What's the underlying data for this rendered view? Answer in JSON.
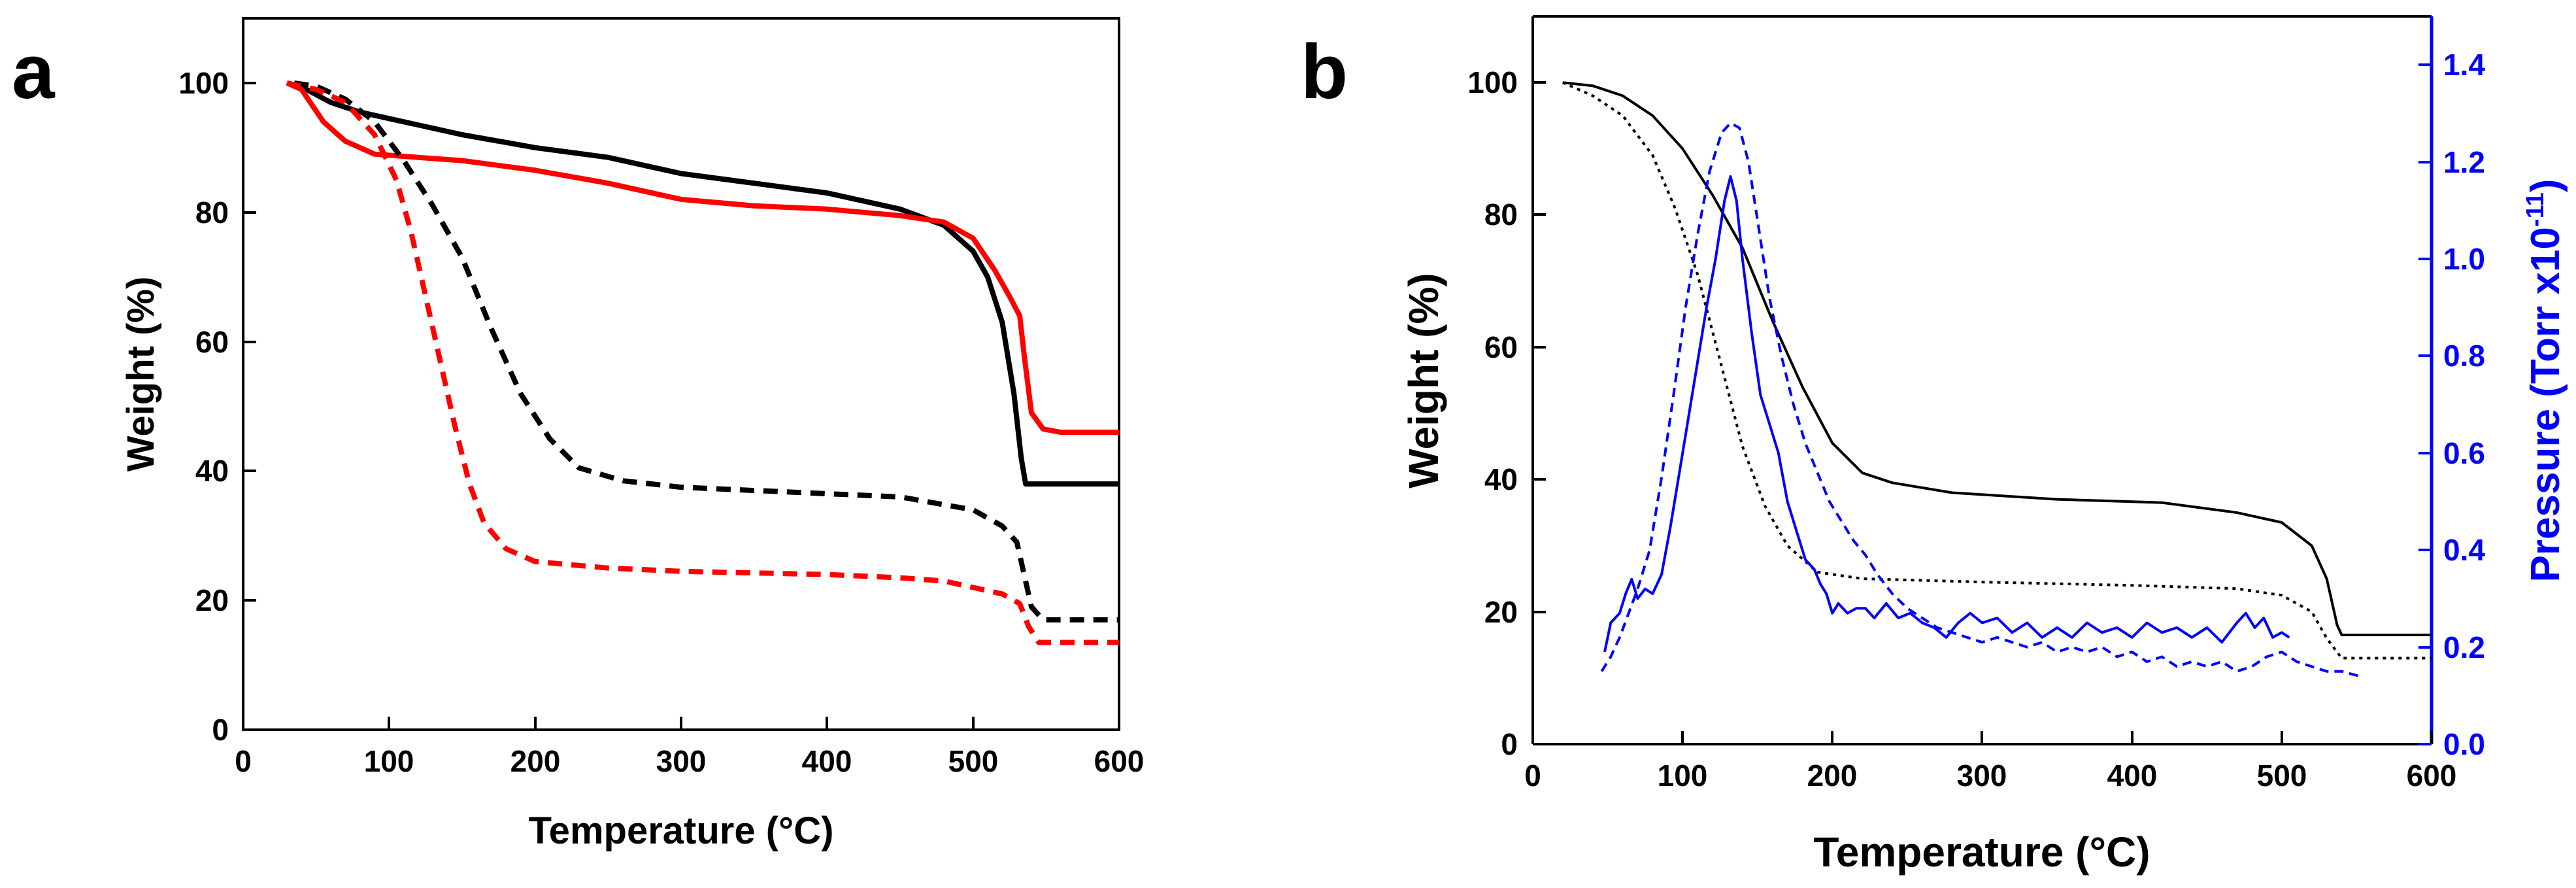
{
  "chart_data": [
    {
      "panel": "a",
      "type": "line",
      "xlabel": "Temperature (°C)",
      "ylabel": "Weight (%)",
      "xlim": [
        0,
        600
      ],
      "ylim": [
        0,
        110
      ],
      "xticks": [
        0,
        100,
        200,
        300,
        400,
        500,
        600
      ],
      "yticks": [
        0,
        20,
        40,
        60,
        80,
        100
      ],
      "grid": false,
      "legend": "none",
      "series": [
        {
          "name": "black solid",
          "color": "#000000",
          "style": "solid",
          "points": [
            [
              35,
              100
            ],
            [
              60,
              97
            ],
            [
              80,
              95.5
            ],
            [
              100,
              94.5
            ],
            [
              150,
              92
            ],
            [
              200,
              90
            ],
            [
              250,
              88.5
            ],
            [
              300,
              86
            ],
            [
              350,
              84.5
            ],
            [
              400,
              83
            ],
            [
              450,
              80.5
            ],
            [
              480,
              78
            ],
            [
              500,
              74
            ],
            [
              510,
              70
            ],
            [
              520,
              63
            ],
            [
              528,
              52
            ],
            [
              533,
              42
            ],
            [
              536,
              38
            ],
            [
              545,
              38
            ],
            [
              600,
              38
            ]
          ]
        },
        {
          "name": "red solid",
          "color": "#ff0000",
          "style": "solid",
          "points": [
            [
              30,
              100
            ],
            [
              40,
              99
            ],
            [
              55,
              94
            ],
            [
              70,
              91
            ],
            [
              90,
              89
            ],
            [
              120,
              88.5
            ],
            [
              150,
              88
            ],
            [
              200,
              86.5
            ],
            [
              250,
              84.5
            ],
            [
              300,
              82
            ],
            [
              350,
              81
            ],
            [
              400,
              80.5
            ],
            [
              450,
              79.5
            ],
            [
              480,
              78.5
            ],
            [
              500,
              76
            ],
            [
              515,
              71
            ],
            [
              525,
              67
            ],
            [
              532,
              64
            ],
            [
              535,
              58
            ],
            [
              540,
              49
            ],
            [
              548,
              46.5
            ],
            [
              560,
              46
            ],
            [
              600,
              46
            ]
          ]
        },
        {
          "name": "black dashed",
          "color": "#000000",
          "style": "dashed",
          "points": [
            [
              35,
              100
            ],
            [
              50,
              99.5
            ],
            [
              70,
              97.5
            ],
            [
              90,
              94
            ],
            [
              110,
              88
            ],
            [
              130,
              81
            ],
            [
              150,
              73
            ],
            [
              170,
              62
            ],
            [
              190,
              52
            ],
            [
              210,
              45
            ],
            [
              230,
              40.5
            ],
            [
              260,
              38.5
            ],
            [
              300,
              37.5
            ],
            [
              400,
              36.5
            ],
            [
              450,
              36
            ],
            [
              500,
              34
            ],
            [
              520,
              31.5
            ],
            [
              530,
              29
            ],
            [
              535,
              24
            ],
            [
              540,
              19
            ],
            [
              548,
              17
            ],
            [
              560,
              17
            ],
            [
              600,
              17
            ]
          ]
        },
        {
          "name": "red dashed",
          "color": "#ff0000",
          "style": "dashed",
          "points": [
            [
              30,
              100
            ],
            [
              50,
              99
            ],
            [
              70,
              97
            ],
            [
              90,
              92
            ],
            [
              105,
              85
            ],
            [
              115,
              77
            ],
            [
              125,
              67
            ],
            [
              135,
              57
            ],
            [
              145,
              47
            ],
            [
              155,
              38
            ],
            [
              165,
              32
            ],
            [
              180,
              28
            ],
            [
              200,
              26
            ],
            [
              250,
              25
            ],
            [
              300,
              24.5
            ],
            [
              400,
              24
            ],
            [
              450,
              23.5
            ],
            [
              480,
              23
            ],
            [
              500,
              22
            ],
            [
              520,
              21
            ],
            [
              532,
              19.5
            ],
            [
              538,
              16
            ],
            [
              545,
              13.5
            ],
            [
              560,
              13.5
            ],
            [
              600,
              13.5
            ]
          ]
        }
      ]
    },
    {
      "panel": "b",
      "type": "line",
      "xlabel": "Temperature (°C)",
      "ylabel": "Weight (%)",
      "y2label": "Pressure (Torr x10",
      "y2label_sup": "-11",
      "y2label_end": ")",
      "xlim": [
        0,
        600
      ],
      "ylim": [
        0,
        110
      ],
      "y2lim": [
        0,
        1.5
      ],
      "xticks": [
        0,
        100,
        200,
        300,
        400,
        500,
        600
      ],
      "yticks": [
        0,
        20,
        40,
        60,
        80,
        100
      ],
      "y2ticks": [
        "0.0",
        "0.2",
        "0.4",
        "0.6",
        "0.8",
        "1.0",
        "1.2",
        "1.4"
      ],
      "grid": false,
      "legend": "none",
      "series": [
        {
          "name": "weight solid",
          "axis": "left",
          "color": "#000000",
          "style": "solid",
          "points": [
            [
              20,
              100
            ],
            [
              40,
              99.5
            ],
            [
              60,
              98
            ],
            [
              80,
              95
            ],
            [
              100,
              90
            ],
            [
              120,
              83
            ],
            [
              140,
              75
            ],
            [
              160,
              64
            ],
            [
              180,
              54
            ],
            [
              200,
              45.5
            ],
            [
              220,
              41
            ],
            [
              240,
              39.5
            ],
            [
              280,
              38
            ],
            [
              350,
              37
            ],
            [
              420,
              36.5
            ],
            [
              470,
              35
            ],
            [
              500,
              33.5
            ],
            [
              520,
              30
            ],
            [
              530,
              25
            ],
            [
              537,
              18
            ],
            [
              540,
              16.5
            ],
            [
              560,
              16.5
            ],
            [
              600,
              16.5
            ]
          ]
        },
        {
          "name": "weight dotted",
          "axis": "left",
          "color": "#000000",
          "style": "dotted",
          "points": [
            [
              20,
              100
            ],
            [
              40,
              98
            ],
            [
              60,
              95
            ],
            [
              80,
              89
            ],
            [
              95,
              81
            ],
            [
              110,
              71
            ],
            [
              125,
              58
            ],
            [
              140,
              45
            ],
            [
              155,
              36
            ],
            [
              170,
              30
            ],
            [
              190,
              26
            ],
            [
              220,
              25
            ],
            [
              300,
              24.5
            ],
            [
              400,
              24
            ],
            [
              470,
              23.5
            ],
            [
              500,
              22.5
            ],
            [
              520,
              20
            ],
            [
              530,
              16
            ],
            [
              540,
              13
            ],
            [
              560,
              13
            ],
            [
              600,
              13
            ]
          ]
        },
        {
          "name": "pressure solid",
          "axis": "right",
          "color": "#0000ff",
          "style": "solid",
          "points": [
            [
              48,
              0.19
            ],
            [
              52,
              0.25
            ],
            [
              58,
              0.27
            ],
            [
              62,
              0.31
            ],
            [
              66,
              0.34
            ],
            [
              70,
              0.3
            ],
            [
              75,
              0.32
            ],
            [
              80,
              0.31
            ],
            [
              86,
              0.35
            ],
            [
              92,
              0.45
            ],
            [
              100,
              0.6
            ],
            [
              108,
              0.75
            ],
            [
              116,
              0.9
            ],
            [
              122,
              1.0
            ],
            [
              128,
              1.12
            ],
            [
              132,
              1.17
            ],
            [
              136,
              1.12
            ],
            [
              140,
              1.0
            ],
            [
              146,
              0.85
            ],
            [
              152,
              0.72
            ],
            [
              158,
              0.66
            ],
            [
              164,
              0.6
            ],
            [
              170,
              0.5
            ],
            [
              176,
              0.44
            ],
            [
              182,
              0.38
            ],
            [
              188,
              0.36
            ],
            [
              192,
              0.33
            ],
            [
              196,
              0.31
            ],
            [
              200,
              0.27
            ],
            [
              204,
              0.29
            ],
            [
              210,
              0.27
            ],
            [
              216,
              0.28
            ],
            [
              222,
              0.28
            ],
            [
              228,
              0.26
            ],
            [
              236,
              0.29
            ],
            [
              244,
              0.26
            ],
            [
              252,
              0.27
            ],
            [
              260,
              0.25
            ],
            [
              268,
              0.24
            ],
            [
              276,
              0.22
            ],
            [
              284,
              0.25
            ],
            [
              292,
              0.27
            ],
            [
              300,
              0.25
            ],
            [
              310,
              0.26
            ],
            [
              320,
              0.23
            ],
            [
              330,
              0.25
            ],
            [
              340,
              0.22
            ],
            [
              350,
              0.24
            ],
            [
              360,
              0.22
            ],
            [
              370,
              0.25
            ],
            [
              380,
              0.23
            ],
            [
              390,
              0.24
            ],
            [
              400,
              0.22
            ],
            [
              410,
              0.25
            ],
            [
              420,
              0.23
            ],
            [
              430,
              0.24
            ],
            [
              440,
              0.22
            ],
            [
              450,
              0.24
            ],
            [
              460,
              0.21
            ],
            [
              470,
              0.25
            ],
            [
              476,
              0.27
            ],
            [
              482,
              0.24
            ],
            [
              488,
              0.26
            ],
            [
              494,
              0.22
            ],
            [
              500,
              0.23
            ],
            [
              505,
              0.22
            ]
          ]
        },
        {
          "name": "pressure dashed",
          "axis": "right",
          "color": "#0000ff",
          "style": "dashed",
          "points": [
            [
              46,
              0.15
            ],
            [
              52,
              0.18
            ],
            [
              58,
              0.22
            ],
            [
              64,
              0.27
            ],
            [
              70,
              0.32
            ],
            [
              78,
              0.4
            ],
            [
              86,
              0.55
            ],
            [
              94,
              0.72
            ],
            [
              102,
              0.9
            ],
            [
              110,
              1.05
            ],
            [
              118,
              1.18
            ],
            [
              126,
              1.26
            ],
            [
              132,
              1.28
            ],
            [
              138,
              1.27
            ],
            [
              144,
              1.2
            ],
            [
              150,
              1.08
            ],
            [
              158,
              0.92
            ],
            [
              166,
              0.8
            ],
            [
              174,
              0.7
            ],
            [
              182,
              0.62
            ],
            [
              190,
              0.56
            ],
            [
              198,
              0.5
            ],
            [
              206,
              0.46
            ],
            [
              214,
              0.42
            ],
            [
              222,
              0.39
            ],
            [
              230,
              0.35
            ],
            [
              240,
              0.31
            ],
            [
              250,
              0.28
            ],
            [
              260,
              0.26
            ],
            [
              270,
              0.24
            ],
            [
              280,
              0.23
            ],
            [
              290,
              0.22
            ],
            [
              300,
              0.21
            ],
            [
              310,
              0.22
            ],
            [
              320,
              0.21
            ],
            [
              330,
              0.2
            ],
            [
              340,
              0.21
            ],
            [
              350,
              0.19
            ],
            [
              360,
              0.2
            ],
            [
              370,
              0.19
            ],
            [
              380,
              0.2
            ],
            [
              390,
              0.18
            ],
            [
              400,
              0.19
            ],
            [
              410,
              0.17
            ],
            [
              420,
              0.18
            ],
            [
              430,
              0.16
            ],
            [
              440,
              0.17
            ],
            [
              450,
              0.16
            ],
            [
              460,
              0.17
            ],
            [
              470,
              0.15
            ],
            [
              480,
              0.16
            ],
            [
              490,
              0.18
            ],
            [
              500,
              0.19
            ],
            [
              510,
              0.17
            ],
            [
              520,
              0.16
            ],
            [
              530,
              0.15
            ],
            [
              540,
              0.15
            ],
            [
              552,
              0.14
            ]
          ]
        }
      ]
    }
  ]
}
